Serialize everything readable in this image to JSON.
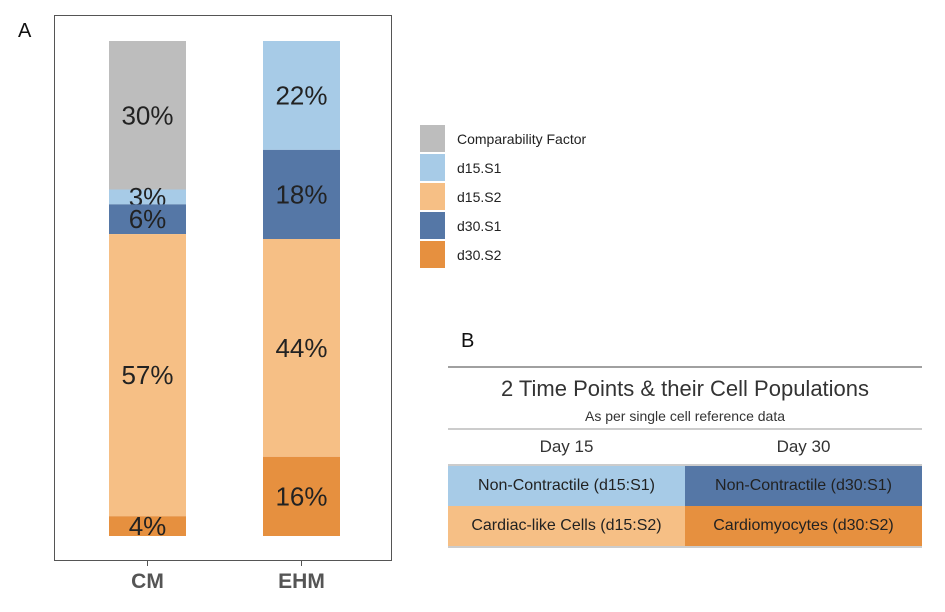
{
  "panel_a_label": "A",
  "panel_b_label": "B",
  "chart_data": {
    "type": "bar",
    "stacked": true,
    "categories": [
      "CM",
      "EHM"
    ],
    "series": [
      {
        "name": "Comparability Factor",
        "color": "#bdbdbd",
        "values": [
          30,
          0
        ],
        "labels": [
          "30%",
          ""
        ]
      },
      {
        "name": "d15.S1",
        "color": "#a7cbe7",
        "values": [
          3,
          22
        ],
        "labels": [
          "3%",
          "22%"
        ]
      },
      {
        "name": "d30.S1",
        "color": "#5577a6",
        "values": [
          6,
          18
        ],
        "labels": [
          "6%",
          "18%"
        ]
      },
      {
        "name": "d15.S2",
        "color": "#f6bf85",
        "values": [
          57,
          44
        ],
        "labels": [
          "57%",
          "44%"
        ]
      },
      {
        "name": "d30.S2",
        "color": "#e6903f",
        "values": [
          4,
          16
        ],
        "labels": [
          "4%",
          "16%"
        ]
      }
    ],
    "ylim": [
      0,
      100
    ],
    "legend": [
      "Comparability Factor",
      "d15.S1",
      "d15.S2",
      "d30.S1",
      "d30.S2"
    ],
    "legend_position": "right"
  },
  "legend_items": [
    {
      "label": "Comparability Factor",
      "color": "#bdbdbd"
    },
    {
      "label": "d15.S1",
      "color": "#a7cbe7"
    },
    {
      "label": "d15.S2",
      "color": "#f6bf85"
    },
    {
      "label": "d30.S1",
      "color": "#5577a6"
    },
    {
      "label": "d30.S2",
      "color": "#e6903f"
    }
  ],
  "table": {
    "title": "2 Time Points & their Cell Populations",
    "subtitle": "As per single cell reference data",
    "col_day15": "Day 15",
    "col_day30": "Day 30",
    "rows": [
      {
        "day15": "Non-Contractile (d15:S1)",
        "day15_color": "#a7cbe7",
        "day30": "Non-Contractile (d30:S1)",
        "day30_color": "#5577a6"
      },
      {
        "day15": "Cardiac-like Cells (d15:S2)",
        "day15_color": "#f6bf85",
        "day30": "Cardiomyocytes (d30:S2)",
        "day30_color": "#e6903f"
      }
    ]
  }
}
